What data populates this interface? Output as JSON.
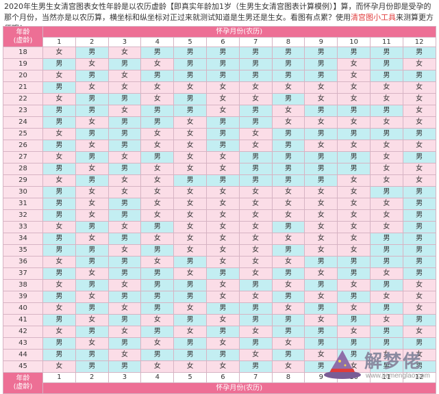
{
  "intro": {
    "part1": "2020年生男生女清宫图表女性年龄是以农历虚龄【即真实年龄加1岁（生男生女清宫图表计算模例）】算，而怀孕月份即是受孕的那个月份，当然亦是以农历算，横坐标和纵坐标对正过来就测试知道是生男还是生女。看图有点累？使用",
    "link": "清宫图小工具",
    "part2": "来测算更方便哦！"
  },
  "table": {
    "age_header": "年龄\n(虚龄)",
    "month_header": "怀孕月份(农历)",
    "footer_age": "年龄\n(虚龄)",
    "footer_month": "怀孕月份(农历)",
    "months": [
      "1",
      "2",
      "3",
      "4",
      "5",
      "6",
      "7",
      "8",
      "9",
      "10",
      "11",
      "12"
    ],
    "rows": [
      {
        "age": "18",
        "cells": [
          "女",
          "男",
          "女",
          "男",
          "男",
          "男",
          "男",
          "男",
          "男",
          "男",
          "男",
          "男"
        ]
      },
      {
        "age": "19",
        "cells": [
          "男",
          "女",
          "男",
          "女",
          "男",
          "男",
          "男",
          "男",
          "男",
          "女",
          "男",
          "女"
        ]
      },
      {
        "age": "20",
        "cells": [
          "女",
          "男",
          "女",
          "男",
          "男",
          "男",
          "男",
          "男",
          "男",
          "女",
          "男",
          "男"
        ]
      },
      {
        "age": "21",
        "cells": [
          "男",
          "女",
          "女",
          "女",
          "女",
          "女",
          "女",
          "女",
          "女",
          "女",
          "女",
          "女"
        ]
      },
      {
        "age": "22",
        "cells": [
          "女",
          "男",
          "男",
          "女",
          "男",
          "女",
          "女",
          "男",
          "女",
          "女",
          "女",
          "女"
        ]
      },
      {
        "age": "23",
        "cells": [
          "男",
          "男",
          "女",
          "男",
          "男",
          "女",
          "男",
          "女",
          "男",
          "男",
          "男",
          "女"
        ]
      },
      {
        "age": "24",
        "cells": [
          "男",
          "女",
          "男",
          "男",
          "女",
          "男",
          "男",
          "女",
          "女",
          "女",
          "女",
          "女"
        ]
      },
      {
        "age": "25",
        "cells": [
          "女",
          "男",
          "男",
          "女",
          "女",
          "男",
          "女",
          "男",
          "男",
          "男",
          "男",
          "男"
        ]
      },
      {
        "age": "26",
        "cells": [
          "男",
          "女",
          "男",
          "女",
          "女",
          "男",
          "女",
          "男",
          "女",
          "女",
          "女",
          "女"
        ]
      },
      {
        "age": "27",
        "cells": [
          "女",
          "男",
          "女",
          "男",
          "女",
          "女",
          "男",
          "男",
          "男",
          "男",
          "女",
          "男"
        ]
      },
      {
        "age": "28",
        "cells": [
          "男",
          "女",
          "男",
          "女",
          "女",
          "女",
          "男",
          "男",
          "男",
          "男",
          "女",
          "女"
        ]
      },
      {
        "age": "29",
        "cells": [
          "女",
          "男",
          "女",
          "女",
          "男",
          "男",
          "男",
          "男",
          "男",
          "女",
          "女",
          "女"
        ]
      },
      {
        "age": "30",
        "cells": [
          "男",
          "女",
          "女",
          "女",
          "女",
          "女",
          "女",
          "女",
          "女",
          "女",
          "男",
          "男"
        ]
      },
      {
        "age": "31",
        "cells": [
          "男",
          "女",
          "男",
          "女",
          "女",
          "女",
          "女",
          "女",
          "女",
          "女",
          "女",
          "男"
        ]
      },
      {
        "age": "32",
        "cells": [
          "男",
          "女",
          "男",
          "女",
          "女",
          "女",
          "女",
          "女",
          "女",
          "女",
          "女",
          "男"
        ]
      },
      {
        "age": "33",
        "cells": [
          "女",
          "男",
          "女",
          "男",
          "女",
          "女",
          "女",
          "男",
          "女",
          "女",
          "女",
          "男"
        ]
      },
      {
        "age": "34",
        "cells": [
          "男",
          "女",
          "男",
          "女",
          "女",
          "女",
          "女",
          "女",
          "女",
          "女",
          "男",
          "男"
        ]
      },
      {
        "age": "35",
        "cells": [
          "男",
          "男",
          "女",
          "男",
          "女",
          "女",
          "女",
          "男",
          "女",
          "女",
          "男",
          "男"
        ]
      },
      {
        "age": "36",
        "cells": [
          "女",
          "男",
          "男",
          "女",
          "男",
          "女",
          "女",
          "女",
          "男",
          "男",
          "男",
          "男"
        ]
      },
      {
        "age": "37",
        "cells": [
          "男",
          "女",
          "男",
          "男",
          "女",
          "男",
          "女",
          "男",
          "女",
          "男",
          "女",
          "男"
        ]
      },
      {
        "age": "38",
        "cells": [
          "女",
          "男",
          "女",
          "男",
          "男",
          "女",
          "男",
          "女",
          "男",
          "女",
          "男",
          "女"
        ]
      },
      {
        "age": "39",
        "cells": [
          "男",
          "女",
          "男",
          "男",
          "男",
          "女",
          "女",
          "男",
          "女",
          "男",
          "女",
          "女"
        ]
      },
      {
        "age": "40",
        "cells": [
          "女",
          "男",
          "女",
          "男",
          "女",
          "男",
          "男",
          "女",
          "男",
          "女",
          "男",
          "女"
        ]
      },
      {
        "age": "41",
        "cells": [
          "男",
          "女",
          "男",
          "女",
          "男",
          "女",
          "男",
          "男",
          "女",
          "男",
          "女",
          "男"
        ]
      },
      {
        "age": "42",
        "cells": [
          "女",
          "男",
          "女",
          "男",
          "女",
          "男",
          "女",
          "男",
          "男",
          "女",
          "男",
          "女"
        ]
      },
      {
        "age": "43",
        "cells": [
          "男",
          "女",
          "男",
          "女",
          "男",
          "女",
          "男",
          "女",
          "男",
          "男",
          "男",
          "男"
        ]
      },
      {
        "age": "44",
        "cells": [
          "男",
          "男",
          "女",
          "男",
          "男",
          "男",
          "女",
          "男",
          "女",
          "男",
          "女",
          "女"
        ]
      },
      {
        "age": "45",
        "cells": [
          "女",
          "男",
          "男",
          "女",
          "女",
          "女",
          "男",
          "女",
          "男",
          "女",
          "男",
          "男"
        ]
      }
    ]
  },
  "colors": {
    "header": "#ed6f95",
    "boy": "#c3eef2",
    "girl": "#fbdde7",
    "link": "#e03c3c"
  },
  "watermark": {
    "name": "解梦佬",
    "url": "www.jiemenglao.com",
    "icon": "wizard-hat-icon"
  }
}
